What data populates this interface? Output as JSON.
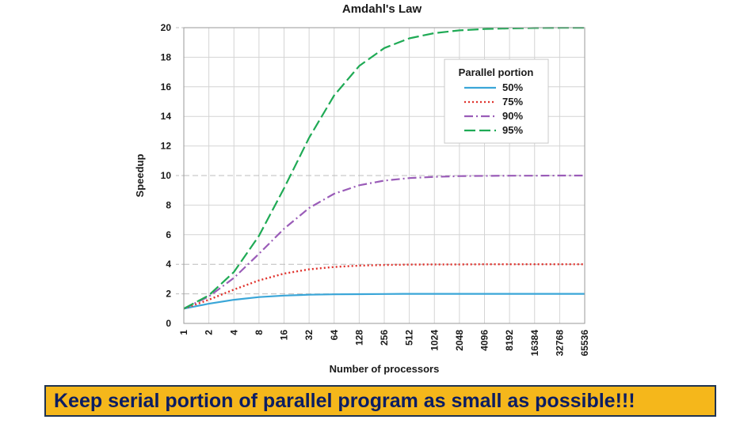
{
  "chart_data": {
    "type": "line",
    "title": "Amdahl's Law",
    "xlabel": "Number of processors",
    "ylabel": "Speedup",
    "x_scale": "log2",
    "x": [
      1,
      2,
      4,
      8,
      16,
      32,
      64,
      128,
      256,
      512,
      1024,
      2048,
      4096,
      8192,
      16384,
      32768,
      65536
    ],
    "x_tick_labels": [
      "1",
      "2",
      "4",
      "8",
      "16",
      "32",
      "64",
      "128",
      "256",
      "512",
      "1024",
      "2048",
      "4096",
      "8192",
      "16384",
      "32768",
      "65536"
    ],
    "ylim": [
      0,
      20
    ],
    "y_ticks": [
      0,
      2,
      4,
      6,
      8,
      10,
      12,
      14,
      16,
      18,
      20
    ],
    "grid": true,
    "legend": {
      "title": "Parallel portion",
      "placement": "top-right"
    },
    "series": [
      {
        "name": "50%",
        "color": "#3aa6d8",
        "style": "solid",
        "values": [
          1.0,
          1.33,
          1.6,
          1.78,
          1.88,
          1.94,
          1.97,
          1.98,
          1.99,
          2.0,
          2.0,
          2.0,
          2.0,
          2.0,
          2.0,
          2.0,
          2.0
        ]
      },
      {
        "name": "75%",
        "color": "#e0322c",
        "style": "dotted",
        "values": [
          1.0,
          1.6,
          2.29,
          2.91,
          3.37,
          3.66,
          3.82,
          3.91,
          3.95,
          3.98,
          3.99,
          3.99,
          4.0,
          4.0,
          4.0,
          4.0,
          4.0
        ]
      },
      {
        "name": "90%",
        "color": "#9a5cb8",
        "style": "dashdot",
        "values": [
          1.0,
          1.82,
          3.08,
          4.71,
          6.4,
          7.8,
          8.77,
          9.34,
          9.66,
          9.83,
          9.91,
          9.96,
          9.98,
          9.99,
          9.99,
          10.0,
          10.0
        ]
      },
      {
        "name": "95%",
        "color": "#1faa55",
        "style": "dashed",
        "values": [
          1.0,
          1.9,
          3.48,
          5.93,
          9.14,
          12.55,
          15.42,
          17.41,
          18.62,
          19.28,
          19.63,
          19.82,
          19.91,
          19.95,
          19.98,
          19.99,
          19.99
        ]
      }
    ]
  },
  "banner": {
    "text": "Keep serial portion of parallel program as small as possible!!!"
  }
}
